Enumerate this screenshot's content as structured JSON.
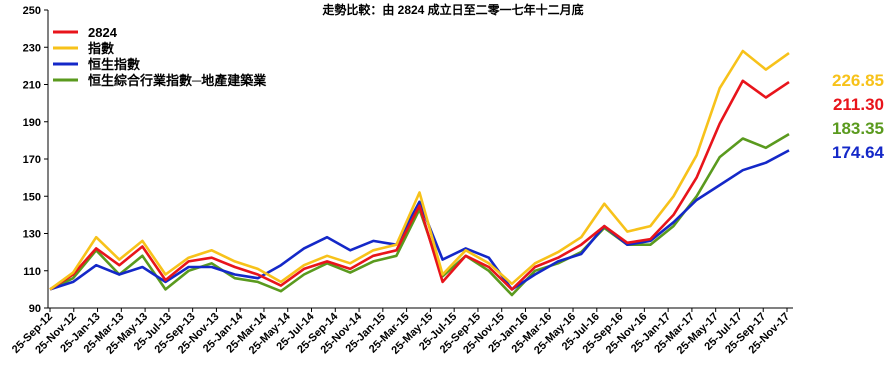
{
  "chart_data": {
    "type": "line",
    "title": "走勢比較：由 2824 成立日至二零一七年十二月底",
    "ylim": [
      90,
      250
    ],
    "y_ticks": [
      90,
      110,
      130,
      150,
      170,
      190,
      210,
      230,
      250
    ],
    "x_tick_labels": [
      "25-Sep-12",
      "25-Nov-12",
      "25-Jan-13",
      "25-Mar-13",
      "25-May-13",
      "25-Jul-13",
      "25-Sep-13",
      "25-Nov-13",
      "25-Jan-14",
      "25-Mar-14",
      "25-May-14",
      "25-Jul-14",
      "25-Sep-14",
      "25-Nov-14",
      "25-Jan-15",
      "25-Mar-15",
      "25-May-15",
      "25-Jul-15",
      "25-Sep-15",
      "25-Nov-15",
      "25-Jan-16",
      "25-Mar-16",
      "25-May-16",
      "25-Jul-16",
      "25-Sep-16",
      "25-Nov-16",
      "25-Jan-17",
      "25-Mar-17",
      "25-May-17",
      "25-Jul-17",
      "25-Sep-17",
      "25-Nov-17"
    ],
    "grid": false,
    "legend_position": "top-left",
    "series": [
      {
        "name": "2824",
        "color": "#e8141b",
        "end_label": "211.30",
        "values": [
          100,
          108,
          122,
          113,
          123,
          105,
          115,
          117,
          112,
          108,
          102,
          111,
          115,
          111,
          118,
          121,
          145,
          104,
          118,
          112,
          100,
          112,
          117,
          124,
          134,
          125,
          127,
          140,
          160,
          189,
          212,
          203,
          211.3
        ]
      },
      {
        "name": "指數",
        "color": "#f7c21a",
        "end_label": "226.85",
        "values": [
          100,
          109,
          128,
          116,
          126,
          108,
          117,
          121,
          115,
          111,
          104,
          113,
          118,
          114,
          121,
          124,
          152,
          108,
          121,
          114,
          103,
          114,
          120,
          128,
          146,
          131,
          134,
          150,
          172,
          208,
          228,
          218,
          226.85
        ]
      },
      {
        "name": "恒生指數",
        "color": "#1428c8",
        "end_label": "174.64",
        "values": [
          100,
          104,
          113,
          108,
          112,
          104,
          112,
          112,
          108,
          106,
          113,
          122,
          128,
          121,
          126,
          124,
          147,
          116,
          122,
          117,
          100,
          108,
          115,
          119,
          134,
          124,
          126,
          136,
          148,
          156,
          164,
          168,
          174.64
        ]
      },
      {
        "name": "恒生綜合行業指數─地產建築業",
        "color": "#5a9a1e",
        "end_label": "183.35",
        "values": [
          100,
          106,
          121,
          108,
          118,
          100,
          110,
          114,
          106,
          104,
          99,
          108,
          114,
          109,
          115,
          118,
          143,
          107,
          118,
          110,
          97,
          110,
          114,
          120,
          133,
          124,
          124,
          134,
          150,
          171,
          181,
          176,
          183.35
        ]
      }
    ]
  }
}
